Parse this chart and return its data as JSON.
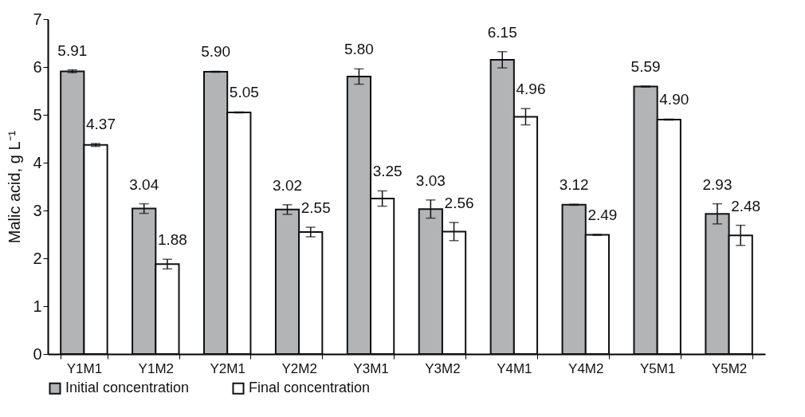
{
  "chart_data": {
    "type": "bar",
    "ylabel": "Malic acid, g L⁻¹",
    "categories": [
      "Y1M1",
      "Y1M2",
      "Y2M1",
      "Y2M2",
      "Y3M1",
      "Y3M2",
      "Y4M1",
      "Y4M2",
      "Y5M1",
      "Y5M2"
    ],
    "series": [
      {
        "name": "Initial concentration",
        "color": "#b3b4b6",
        "values": [
          5.91,
          3.04,
          5.9,
          3.02,
          5.8,
          3.03,
          6.15,
          3.12,
          5.59,
          2.93
        ],
        "errors": [
          0.03,
          0.1,
          0.01,
          0.1,
          0.16,
          0.19,
          0.17,
          0.01,
          0.01,
          0.21
        ],
        "value_labels": [
          "5.91",
          "3.04",
          "5.90",
          "3.02",
          "5.80",
          "3.03",
          "6.15",
          "3.12",
          "5.59",
          "2.93"
        ]
      },
      {
        "name": "Final concentration",
        "color": "#ffffff",
        "values": [
          4.37,
          1.88,
          5.05,
          2.55,
          3.25,
          2.56,
          4.96,
          2.49,
          4.9,
          2.48
        ],
        "errors": [
          0.03,
          0.1,
          0.01,
          0.1,
          0.16,
          0.19,
          0.17,
          0.01,
          0.01,
          0.21
        ],
        "value_labels": [
          "4.37",
          "1.88",
          "5.05",
          "2.55",
          "3.25",
          "2.56",
          "4.96",
          "2.49",
          "4.90",
          "2.48"
        ]
      }
    ],
    "ylim": [
      0,
      7
    ],
    "yticks": [
      0,
      1,
      2,
      3,
      4,
      5,
      6,
      7
    ],
    "grid": false,
    "legend": "bottom"
  }
}
